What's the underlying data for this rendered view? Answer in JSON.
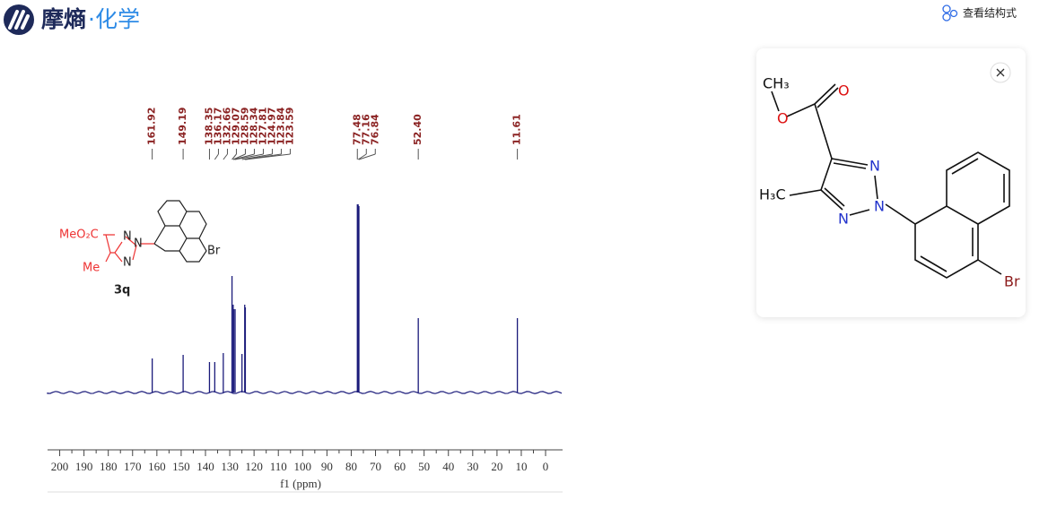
{
  "header": {
    "brand": "摩熵",
    "brand_accent": "·化学",
    "action": "查看结构式"
  },
  "spectrum": {
    "peaks": [
      161.92,
      149.19,
      138.35,
      136.17,
      132.66,
      129.07,
      128.59,
      128.34,
      127.81,
      124.97,
      123.84,
      123.59,
      77.48,
      77.16,
      76.84,
      {
        "value": 52.4,
        "label": "52.40"
      },
      11.61
    ],
    "xlim": [
      205,
      -7
    ],
    "xticks": [
      200,
      190,
      180,
      170,
      160,
      150,
      140,
      130,
      120,
      110,
      100,
      90,
      80,
      70,
      60,
      50,
      40,
      30,
      20,
      10,
      0
    ],
    "x_label": "f1 (ppm)",
    "compound": {
      "label": "3q",
      "ester": "MeO₂C",
      "methyl": "Me",
      "n1": "N",
      "n2": "N",
      "n3": "N",
      "halogen": "Br"
    }
  },
  "structure": {
    "methyl_top": "CH₃",
    "ether_o": "O",
    "carbonyl_o": "O",
    "methyl_left": "H₃C",
    "n1": "N",
    "n2": "N",
    "n3": "N",
    "halogen": "Br"
  }
}
